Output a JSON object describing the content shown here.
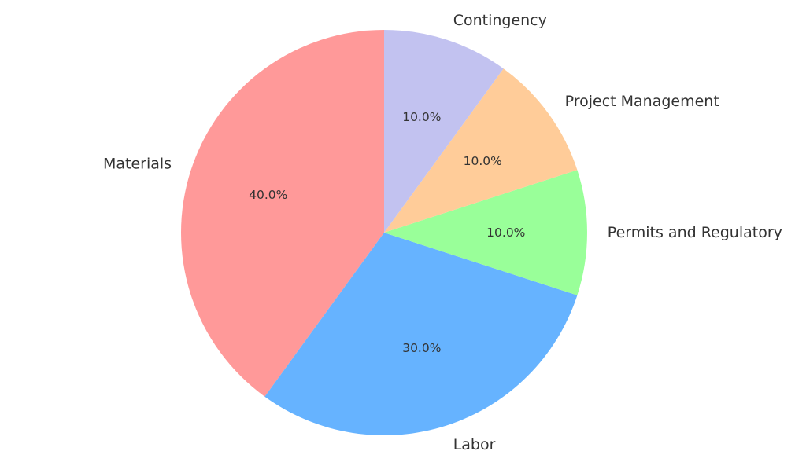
{
  "chart_data": {
    "type": "pie",
    "title": "",
    "categories": [
      "Materials",
      "Labor",
      "Permits and Regulatory",
      "Project Management",
      "Contingency"
    ],
    "values": [
      40,
      30,
      10,
      10,
      10
    ],
    "percent_labels": [
      "40.0%",
      "30.0%",
      "10.0%",
      "10.0%",
      "10.0%"
    ],
    "colors": [
      "#ff9999",
      "#66b3ff",
      "#99ff99",
      "#ffcc99",
      "#c2c2f0"
    ],
    "start_angle": 90,
    "direction": "counterclockwise",
    "legend": false
  }
}
